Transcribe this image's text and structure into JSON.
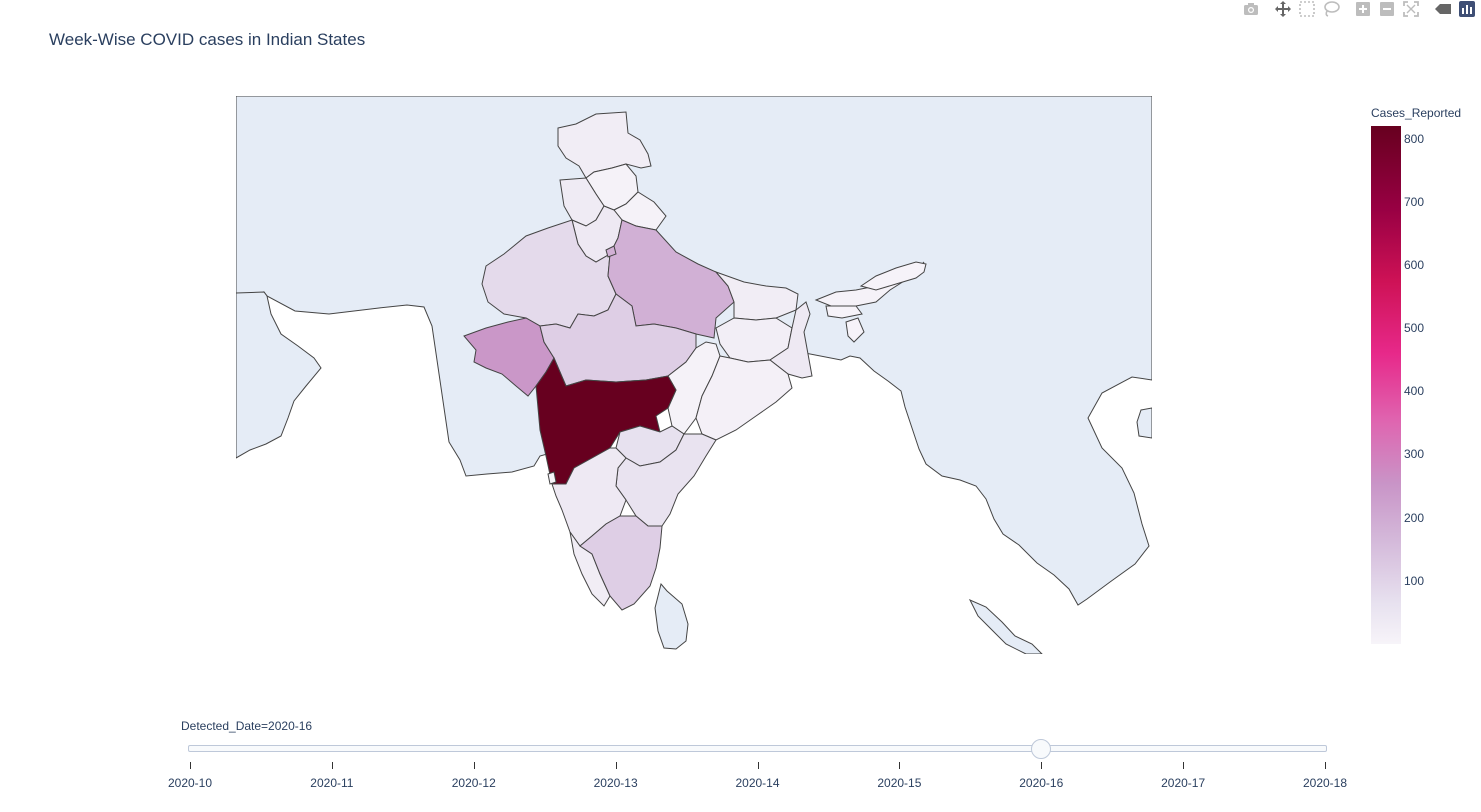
{
  "chart_data": {
    "type": "choropleth",
    "title": "Week-Wise COVID cases in Indian States",
    "colorbar": {
      "title": "Cases_Reported",
      "ticks": [
        100,
        200,
        300,
        400,
        500,
        600,
        700,
        800
      ],
      "range": [
        0,
        820
      ],
      "colorscale": [
        "#f7f4f9",
        "#e7e1ef",
        "#d4b9da",
        "#c994c7",
        "#df65b0",
        "#e7298a",
        "#ce1256",
        "#980043",
        "#67001f"
      ]
    },
    "frame": "2020-16",
    "regions": [
      {
        "name": "Jammu and Kashmir",
        "value": 40
      },
      {
        "name": "Himachal Pradesh",
        "value": 10
      },
      {
        "name": "Punjab",
        "value": 50
      },
      {
        "name": "Uttarakhand",
        "value": 10
      },
      {
        "name": "Haryana",
        "value": 60
      },
      {
        "name": "Rajasthan",
        "value": 120
      },
      {
        "name": "Uttar Pradesh",
        "value": 230
      },
      {
        "name": "Delhi",
        "value": 230
      },
      {
        "name": "Gujarat",
        "value": 300
      },
      {
        "name": "Madhya Pradesh",
        "value": 150
      },
      {
        "name": "Bihar",
        "value": 40
      },
      {
        "name": "Jharkhand",
        "value": 30
      },
      {
        "name": "West Bengal",
        "value": 60
      },
      {
        "name": "Chhattisgarh",
        "value": 10
      },
      {
        "name": "Odisha",
        "value": 20
      },
      {
        "name": "Maharashtra",
        "value": 820
      },
      {
        "name": "Telangana",
        "value": 100
      },
      {
        "name": "Andhra Pradesh",
        "value": 90
      },
      {
        "name": "Karnataka",
        "value": 60
      },
      {
        "name": "Goa",
        "value": 5
      },
      {
        "name": "Kerala",
        "value": 40
      },
      {
        "name": "Tamil Nadu",
        "value": 150
      },
      {
        "name": "Assam",
        "value": 10
      },
      {
        "name": "Arunachal Pradesh",
        "value": 5
      },
      {
        "name": "Meghalaya",
        "value": 5
      },
      {
        "name": "Tripura",
        "value": 5
      }
    ]
  },
  "slider": {
    "label": "Detected_Date=2020-16",
    "active_index": 6,
    "steps": [
      "2020-10",
      "2020-11",
      "2020-12",
      "2020-13",
      "2020-14",
      "2020-15",
      "2020-16",
      "2020-17",
      "2020-18"
    ]
  },
  "modebar": [
    {
      "name": "camera-icon"
    },
    {
      "name": "pan-icon"
    },
    {
      "name": "box-select-icon"
    },
    {
      "name": "lasso-select-icon"
    },
    {
      "name": "zoom-in-icon"
    },
    {
      "name": "zoom-out-icon"
    },
    {
      "name": "reset-view-icon"
    },
    {
      "name": "hover-icon"
    },
    {
      "name": "plotly-logo-icon"
    }
  ]
}
